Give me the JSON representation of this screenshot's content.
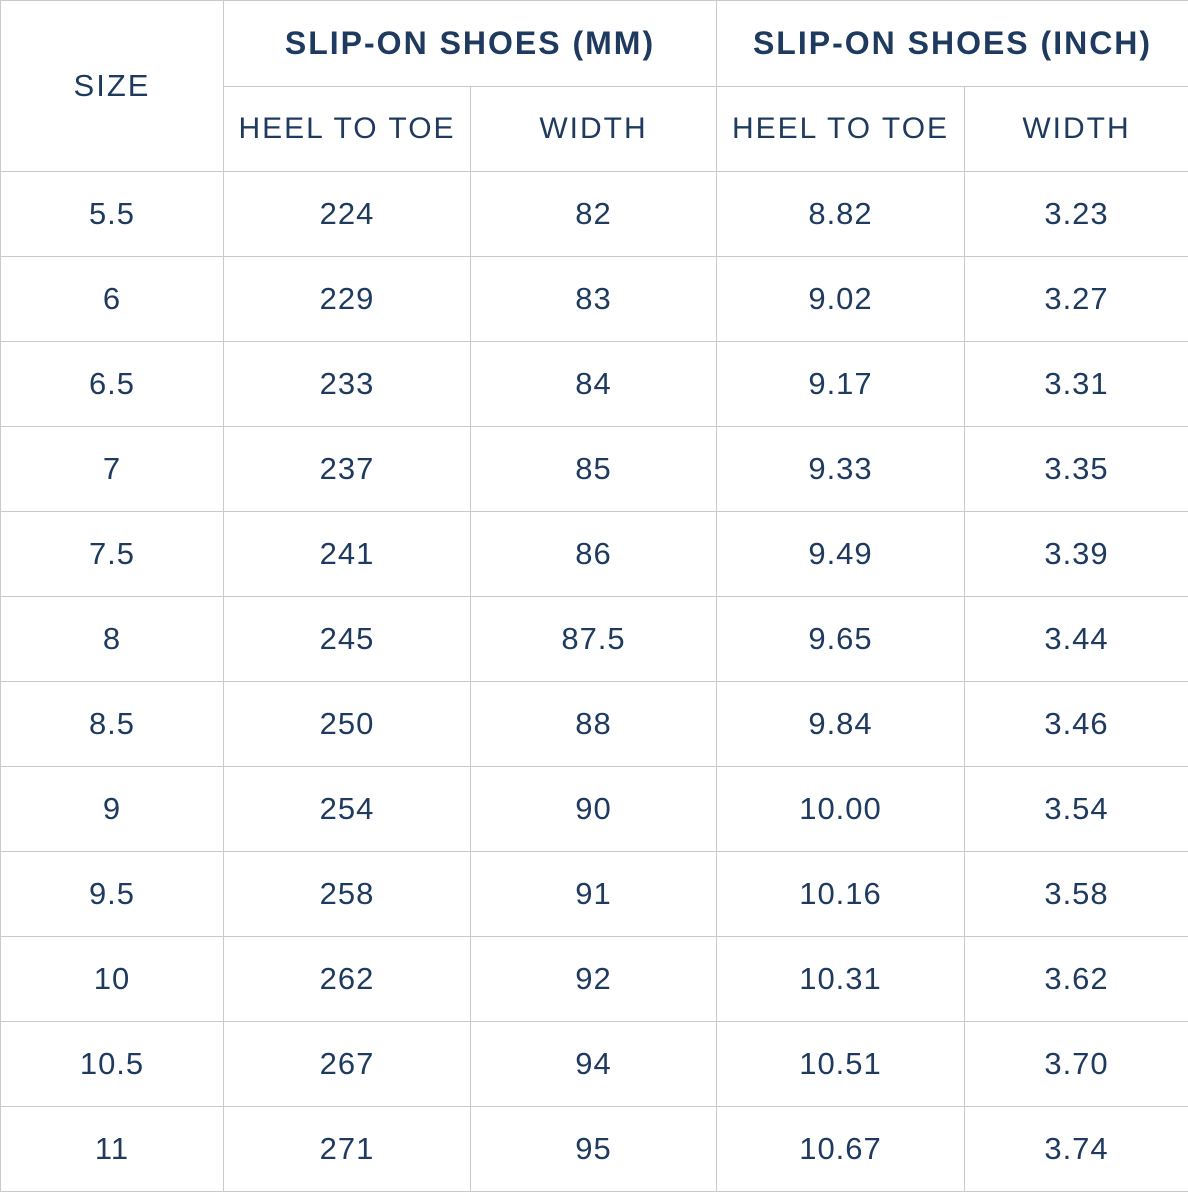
{
  "chart_data": {
    "type": "table",
    "header": {
      "size_label": "SIZE",
      "groups": [
        {
          "label": "SLIP-ON SHOES (MM)",
          "subcolumns": [
            "HEEL TO TOE",
            "WIDTH"
          ]
        },
        {
          "label": "SLIP-ON SHOES (INCH)",
          "subcolumns": [
            "HEEL TO TOE",
            "WIDTH"
          ]
        }
      ]
    },
    "row_field_order": [
      "size",
      "mm_heel_to_toe",
      "mm_width",
      "inch_heel_to_toe",
      "inch_width"
    ],
    "rows": [
      {
        "size": "5.5",
        "mm_heel_to_toe": "224",
        "mm_width": "82",
        "inch_heel_to_toe": "8.82",
        "inch_width": "3.23"
      },
      {
        "size": "6",
        "mm_heel_to_toe": "229",
        "mm_width": "83",
        "inch_heel_to_toe": "9.02",
        "inch_width": "3.27"
      },
      {
        "size": "6.5",
        "mm_heel_to_toe": "233",
        "mm_width": "84",
        "inch_heel_to_toe": "9.17",
        "inch_width": "3.31"
      },
      {
        "size": "7",
        "mm_heel_to_toe": "237",
        "mm_width": "85",
        "inch_heel_to_toe": "9.33",
        "inch_width": "3.35"
      },
      {
        "size": "7.5",
        "mm_heel_to_toe": "241",
        "mm_width": "86",
        "inch_heel_to_toe": "9.49",
        "inch_width": "3.39"
      },
      {
        "size": "8",
        "mm_heel_to_toe": "245",
        "mm_width": "87.5",
        "inch_heel_to_toe": "9.65",
        "inch_width": "3.44"
      },
      {
        "size": "8.5",
        "mm_heel_to_toe": "250",
        "mm_width": "88",
        "inch_heel_to_toe": "9.84",
        "inch_width": "3.46"
      },
      {
        "size": "9",
        "mm_heel_to_toe": "254",
        "mm_width": "90",
        "inch_heel_to_toe": "10.00",
        "inch_width": "3.54"
      },
      {
        "size": "9.5",
        "mm_heel_to_toe": "258",
        "mm_width": "91",
        "inch_heel_to_toe": "10.16",
        "inch_width": "3.58"
      },
      {
        "size": "10",
        "mm_heel_to_toe": "262",
        "mm_width": "92",
        "inch_heel_to_toe": "10.31",
        "inch_width": "3.62"
      },
      {
        "size": "10.5",
        "mm_heel_to_toe": "267",
        "mm_width": "94",
        "inch_heel_to_toe": "10.51",
        "inch_width": "3.70"
      },
      {
        "size": "11",
        "mm_heel_to_toe": "271",
        "mm_width": "95",
        "inch_heel_to_toe": "10.67",
        "inch_width": "3.74"
      }
    ]
  },
  "colors": {
    "text": "#1e3a5f",
    "border": "#c9c9c9",
    "background": "#ffffff"
  }
}
